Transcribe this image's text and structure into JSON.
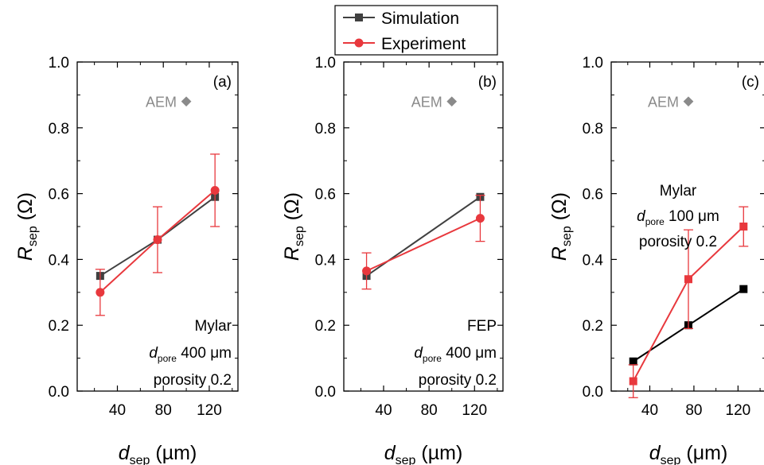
{
  "legend": {
    "items": [
      {
        "label": "Simulation",
        "color": "#404040",
        "marker": "square"
      },
      {
        "label": "Experiment",
        "color": "#e8383d",
        "marker": "circle"
      }
    ]
  },
  "chart_data": [
    {
      "type": "line",
      "panel": "(a)",
      "x_categories": [
        40,
        80,
        120
      ],
      "ylim": [
        0.0,
        1.0
      ],
      "y_ticks": [
        "0.0",
        "0.2",
        "0.4",
        "0.6",
        "0.8",
        "1.0"
      ],
      "x_ticks": [
        "40",
        "80",
        "120"
      ],
      "xlim": [
        5,
        145
      ],
      "xlabel_main": "d",
      "xlabel_sub": "sep",
      "xlabel_unit": " (µm)",
      "ylabel_main": "R",
      "ylabel_sub": "sep",
      "ylabel_unit": " (Ω)",
      "series": [
        {
          "name": "Simulation",
          "color": "#404040",
          "marker": "square",
          "x": [
            25,
            75,
            125
          ],
          "y": [
            0.35,
            0.46,
            0.59
          ]
        },
        {
          "name": "Experiment",
          "color": "#e8383d",
          "marker": "circle",
          "x": [
            25,
            75,
            125
          ],
          "y": [
            0.3,
            0.46,
            0.61
          ],
          "err": [
            0.07,
            0.1,
            0.11
          ]
        }
      ],
      "aem": {
        "label": "AEM",
        "x": 100,
        "y": 0.88
      },
      "annotation": {
        "lines": [
          {
            "text": "Mylar"
          },
          {
            "main": "d",
            "sub": "pore",
            "rest": " 400 μm"
          },
          {
            "text": "porosity 0.2"
          }
        ],
        "anchor": "bottom-right"
      }
    },
    {
      "type": "line",
      "panel": "(b)",
      "x_categories": [
        40,
        80,
        120
      ],
      "ylim": [
        0.0,
        1.0
      ],
      "y_ticks": [
        "0.0",
        "0.2",
        "0.4",
        "0.6",
        "0.8",
        "1.0"
      ],
      "x_ticks": [
        "40",
        "80",
        "120"
      ],
      "xlim": [
        5,
        145
      ],
      "xlabel_main": "d",
      "xlabel_sub": "sep",
      "xlabel_unit": " (µm)",
      "ylabel_main": "R",
      "ylabel_sub": "sep",
      "ylabel_unit": " (Ω)",
      "series": [
        {
          "name": "Simulation",
          "color": "#404040",
          "marker": "square",
          "x": [
            25,
            125
          ],
          "y": [
            0.35,
            0.59
          ]
        },
        {
          "name": "Experiment",
          "color": "#e8383d",
          "marker": "circle",
          "x": [
            25,
            125
          ],
          "y": [
            0.365,
            0.525
          ],
          "err": [
            0.055,
            0.07
          ]
        }
      ],
      "aem": {
        "label": "AEM",
        "x": 100,
        "y": 0.88
      },
      "annotation": {
        "lines": [
          {
            "text": "FEP"
          },
          {
            "main": "d",
            "sub": "pore",
            "rest": " 400 μm"
          },
          {
            "text": "porosity 0.2"
          }
        ],
        "anchor": "bottom-right"
      }
    },
    {
      "type": "line",
      "panel": "(c)",
      "x_categories": [
        40,
        80,
        120
      ],
      "ylim": [
        0.0,
        1.0
      ],
      "y_ticks": [
        "0.0",
        "0.2",
        "0.4",
        "0.6",
        "0.8",
        "1.0"
      ],
      "x_ticks": [
        "40",
        "80",
        "120"
      ],
      "xlim": [
        5,
        145
      ],
      "xlabel_main": "d",
      "xlabel_sub": "sep",
      "xlabel_unit": " (μm)",
      "ylabel_main": "R",
      "ylabel_sub": "sep",
      "ylabel_unit": " (Ω)",
      "series": [
        {
          "name": "Simulation",
          "color": "#000000",
          "marker": "square",
          "x": [
            25,
            75,
            125
          ],
          "y": [
            0.09,
            0.2,
            0.31
          ]
        },
        {
          "name": "Experiment",
          "color": "#e8383d",
          "marker": "square",
          "x": [
            25,
            75,
            125
          ],
          "y": [
            0.03,
            0.34,
            0.5
          ],
          "err": [
            0.05,
            0.15,
            0.06
          ]
        }
      ],
      "aem": {
        "label": "AEM",
        "x": 75,
        "y": 0.88
      },
      "annotation": {
        "lines": [
          {
            "text": "Mylar"
          },
          {
            "main": "d",
            "sub": "pore",
            "rest": " 100 μm"
          },
          {
            "text": "porosity 0.2"
          }
        ],
        "anchor": "upper-left"
      }
    }
  ]
}
